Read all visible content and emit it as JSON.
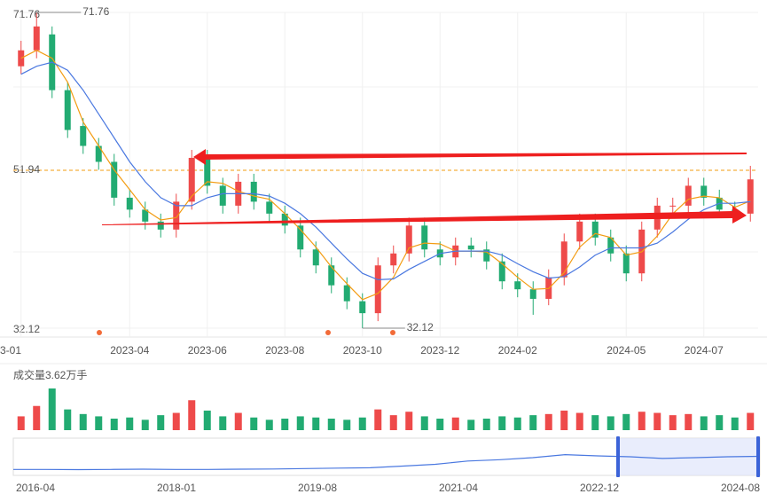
{
  "chart_data": {
    "type": "candlestick",
    "categories": [
      "3-01",
      null,
      null,
      null,
      null,
      null,
      null,
      "2023-04",
      null,
      null,
      null,
      null,
      "2023-06",
      null,
      null,
      null,
      null,
      "2023-08",
      null,
      null,
      null,
      null,
      "2023-10",
      null,
      null,
      null,
      null,
      "2023-12",
      null,
      null,
      null,
      null,
      "2024-02",
      null,
      null,
      null,
      null,
      null,
      null,
      "2024-05",
      null,
      null,
      null,
      null,
      "2024-07",
      null,
      null,
      null
    ],
    "open": [
      65,
      67,
      69,
      62,
      57.5,
      55,
      53,
      48.5,
      47,
      45.5,
      44.5,
      48,
      53.5,
      50,
      47.5,
      50.5,
      48,
      46.5,
      45,
      42,
      40,
      37.5,
      35.5,
      34,
      40,
      41.5,
      45,
      42,
      41,
      42.5,
      42,
      40.5,
      38,
      37,
      35.8,
      38.5,
      43,
      45.5,
      43.5,
      41.5,
      39,
      44.5,
      47.5,
      47.5,
      50,
      48.5,
      47,
      46.5
    ],
    "high": [
      68.2,
      71.76,
      70,
      63,
      58.5,
      56,
      54,
      49.5,
      48,
      46.5,
      49,
      54.5,
      54.5,
      51,
      51.5,
      51.5,
      49,
      47.5,
      46,
      43,
      41,
      38.5,
      36.5,
      41,
      42.5,
      46,
      46,
      43,
      43.5,
      43.5,
      43,
      41.5,
      39,
      38,
      39.5,
      44,
      46.5,
      46.5,
      44.5,
      42.5,
      45.5,
      48.5,
      48.5,
      51,
      51,
      49.5,
      48,
      52.5
    ],
    "low": [
      64,
      66,
      61,
      56,
      54,
      52,
      47.5,
      46,
      44.5,
      43.5,
      43.5,
      47,
      49,
      46.5,
      46.5,
      47,
      45.5,
      44,
      41,
      39,
      36.5,
      34.5,
      32.12,
      33,
      39,
      40.5,
      41,
      40,
      40,
      41,
      39.5,
      37,
      36,
      33.8,
      35,
      37.5,
      42,
      42.5,
      40.5,
      38,
      38,
      43.5,
      46.5,
      46.5,
      47.5,
      46,
      45.5,
      45.5
    ],
    "close": [
      67,
      70,
      62,
      57,
      55,
      53,
      48.5,
      47,
      45.5,
      44.5,
      48,
      53.5,
      50,
      47.5,
      50.5,
      48,
      46.5,
      45,
      42,
      40,
      37.5,
      35.5,
      34,
      40,
      41.5,
      45,
      42,
      41,
      42.5,
      42,
      40.5,
      38,
      37,
      35.8,
      38.5,
      43,
      45.5,
      43.5,
      41.5,
      39,
      44.5,
      47.5,
      47.5,
      50,
      48.5,
      47,
      46.5,
      50.8
    ],
    "up_color": "#ee4a4a",
    "down_color": "#22ab72",
    "ma": [
      {
        "color": "#f39c12",
        "values": [
          66,
          67,
          66,
          63,
          58,
          55,
          52,
          49.5,
          47,
          45.7,
          46,
          48.7,
          50.5,
          50.3,
          49.3,
          48.7,
          48.3,
          46.5,
          44.5,
          42.3,
          39.8,
          37.7,
          35.7,
          36.5,
          38.5,
          42.2,
          42.8,
          42.7,
          41.8,
          41.8,
          41.7,
          40.2,
          38.5,
          37,
          37.1,
          39.1,
          42.3,
          44,
          43.5,
          41.3,
          41.7,
          43.7,
          46.5,
          48.3,
          48.7,
          48.5,
          47.3,
          48.1
        ]
      },
      {
        "color": "#4a78e0",
        "values": [
          64,
          65,
          65.5,
          64.5,
          62,
          59,
          56,
          53,
          50.5,
          48.5,
          47.5,
          47.5,
          48.5,
          49,
          49,
          49,
          48.7,
          47.8,
          46.5,
          44.8,
          42.8,
          40.8,
          39,
          38.2,
          38.3,
          39.5,
          40.5,
          41.5,
          41.8,
          41.8,
          41.8,
          41.3,
          40.2,
          39.2,
          38.4,
          38.6,
          39.8,
          41.3,
          42.2,
          42.2,
          42.2,
          42.8,
          44.2,
          45.8,
          47,
          47.8,
          47.8,
          48
        ]
      }
    ],
    "ylim": [
      32.12,
      71.76
    ],
    "yticks": [
      32.12,
      71.76
    ],
    "current_price": 51.94,
    "grid": true,
    "volume": {
      "label": "成交量3.62万手",
      "ylim": [
        0,
        3.62
      ],
      "values": [
        1.2,
        2.1,
        3.62,
        1.8,
        1.4,
        1.2,
        1.0,
        1.1,
        0.9,
        1.3,
        1.5,
        2.6,
        1.7,
        1.2,
        1.5,
        1.1,
        0.9,
        1.0,
        1.2,
        1.1,
        1.0,
        0.9,
        1.1,
        1.8,
        1.3,
        1.6,
        1.2,
        1.0,
        1.1,
        0.9,
        1.0,
        1.2,
        1.1,
        1.3,
        1.4,
        1.7,
        1.5,
        1.3,
        1.2,
        1.4,
        1.6,
        1.5,
        1.3,
        1.4,
        1.2,
        1.3,
        1.1,
        1.5
      ]
    },
    "navigator": {
      "labels": [
        "2016-04",
        "2018-01",
        "2019-08",
        "2021-04",
        "2022-12",
        "2024-08"
      ],
      "ylim": [
        0,
        80
      ],
      "color": "#4a78e0",
      "values": [
        10,
        10,
        9.5,
        10,
        10.5,
        10,
        10,
        10.5,
        11,
        12,
        13,
        14,
        18,
        22,
        30,
        33,
        38,
        45,
        42,
        40,
        36,
        38,
        40,
        41
      ]
    }
  }
}
